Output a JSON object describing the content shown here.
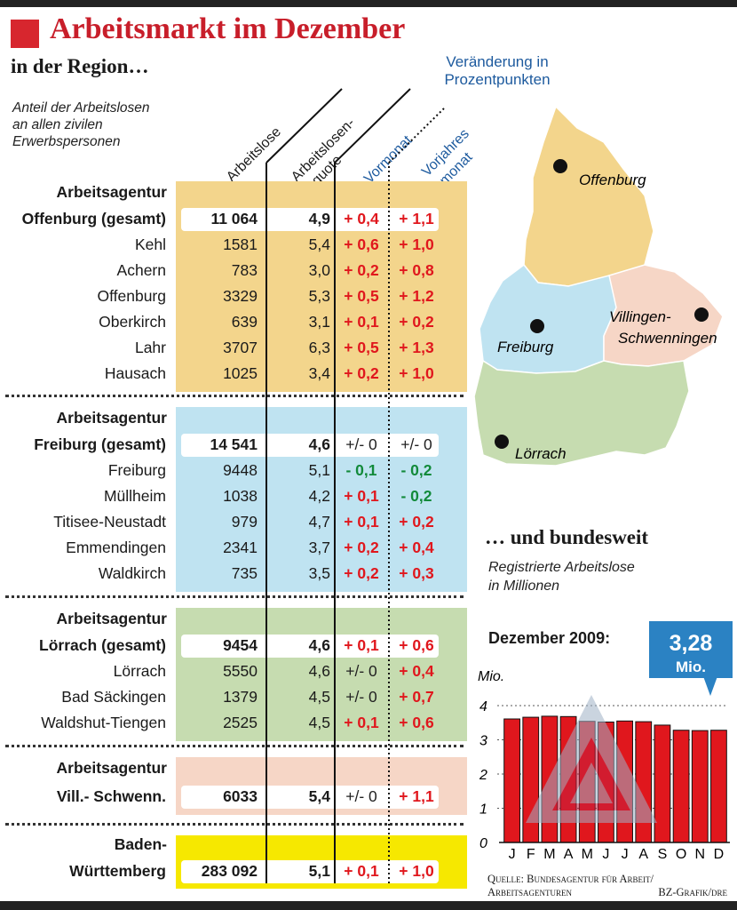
{
  "title": "Arbeitsmarkt im Dezember",
  "subtitle": "in der Region…",
  "note": [
    "Anteil der Arbeitslosen",
    "an allen zivilen",
    "Erwerbspersonen"
  ],
  "change_header": [
    "Veränderung in",
    "Prozentpunkten"
  ],
  "column_headers": {
    "arbeitslose": "Arbeitslose",
    "quote_1": "Arbeitslosen-",
    "quote_2": "quote",
    "vormonat": "Vormonat",
    "vorjahr_1": "Vorjahres",
    "vorjahr_2": "monat"
  },
  "agencies": [
    {
      "head": [
        "Arbeitsagentur",
        "Offenburg (gesamt)"
      ],
      "color": "#f3d58c",
      "total": {
        "num": "11 064",
        "quote": "4,9",
        "vm": "+ 0,4",
        "vj": "+ 1,1"
      },
      "rows": [
        {
          "name": "Kehl",
          "num": "1581",
          "quote": "5,4",
          "vm": "+ 0,6",
          "vj": "+ 1,0"
        },
        {
          "name": "Achern",
          "num": "783",
          "quote": "3,0",
          "vm": "+ 0,2",
          "vj": "+ 0,8"
        },
        {
          "name": "Offenburg",
          "num": "3329",
          "quote": "5,3",
          "vm": "+ 0,5",
          "vj": "+ 1,2"
        },
        {
          "name": "Oberkirch",
          "num": "639",
          "quote": "3,1",
          "vm": "+ 0,1",
          "vj": "+ 0,2"
        },
        {
          "name": "Lahr",
          "num": "3707",
          "quote": "6,3",
          "vm": "+ 0,5",
          "vj": "+ 1,3"
        },
        {
          "name": "Hausach",
          "num": "1025",
          "quote": "3,4",
          "vm": "+ 0,2",
          "vj": "+ 1,0"
        }
      ]
    },
    {
      "head": [
        "Arbeitsagentur",
        "Freiburg (gesamt)"
      ],
      "color": "#bfe3f1",
      "total": {
        "num": "14 541",
        "quote": "4,6",
        "vm": "+/- 0",
        "vj": "+/- 0"
      },
      "rows": [
        {
          "name": "Freiburg",
          "num": "9448",
          "quote": "5,1",
          "vm": "- 0,1",
          "vj": "- 0,2"
        },
        {
          "name": "Müllheim",
          "num": "1038",
          "quote": "4,2",
          "vm": "+ 0,1",
          "vj": "- 0,2"
        },
        {
          "name": "Titisee-Neustadt",
          "num": "979",
          "quote": "4,7",
          "vm": "+ 0,1",
          "vj": "+ 0,2"
        },
        {
          "name": "Emmendingen",
          "num": "2341",
          "quote": "3,7",
          "vm": "+ 0,2",
          "vj": "+ 0,4"
        },
        {
          "name": "Waldkirch",
          "num": "735",
          "quote": "3,5",
          "vm": "+ 0,2",
          "vj": "+ 0,3"
        }
      ]
    },
    {
      "head": [
        "Arbeitsagentur",
        "Lörrach (gesamt)"
      ],
      "color": "#c6dcb0",
      "total": {
        "num": "9454",
        "quote": "4,6",
        "vm": "+ 0,1",
        "vj": "+ 0,6"
      },
      "rows": [
        {
          "name": "Lörrach",
          "num": "5550",
          "quote": "4,6",
          "vm": "+/- 0",
          "vj": "+ 0,4"
        },
        {
          "name": "Bad Säckingen",
          "num": "1379",
          "quote": "4,5",
          "vm": "+/- 0",
          "vj": "+ 0,7"
        },
        {
          "name": "Waldshut-Tiengen",
          "num": "2525",
          "quote": "4,5",
          "vm": "+ 0,1",
          "vj": "+ 0,6"
        }
      ]
    },
    {
      "head": [
        "Arbeitsagentur",
        "Vill.- Schwenn."
      ],
      "color": "#f6d6c6",
      "total": {
        "num": "6033",
        "quote": "5,4",
        "vm": "+/- 0",
        "vj": "+ 1,1"
      },
      "rows": []
    },
    {
      "head": [
        "Baden-",
        "Württemberg"
      ],
      "color": "#f6e800",
      "total": {
        "num": "283 092",
        "quote": "5,1",
        "vm": "+ 0,1",
        "vj": "+ 1,0"
      },
      "rows": []
    }
  ],
  "map": {
    "labels": {
      "offenburg": "Offenburg",
      "freiburg": "Freiburg",
      "villingen_1": "Villingen-",
      "villingen_2": "Schwenningen",
      "loerrach": "Lörrach"
    },
    "colors": {
      "offenburg": "#f3d58c",
      "freiburg": "#bfe3f1",
      "villingen": "#f6d6c6",
      "loerrach": "#c6dcb0"
    }
  },
  "national": {
    "heading": "… und bundesweit",
    "sub": [
      "Registrierte Arbeitslose",
      "in Millionen"
    ],
    "callout_label": "Dezember 2009:",
    "callout_value": "3,28",
    "callout_unit": "Mio."
  },
  "source": [
    "Quelle: Bundesagentur für Arbeit/",
    "Arbeitsagenturen"
  ],
  "credit": "BZ-Grafik/dre",
  "chart_data": {
    "type": "bar",
    "ylabel": "Mio.",
    "ylim": [
      0,
      4
    ],
    "yticks": [
      "0",
      "1",
      "2",
      "3",
      "4"
    ],
    "categories": [
      "J",
      "F",
      "M",
      "A",
      "M",
      "J",
      "J",
      "A",
      "S",
      "O",
      "N",
      "D"
    ],
    "values": [
      3.61,
      3.66,
      3.69,
      3.68,
      3.54,
      3.52,
      3.55,
      3.53,
      3.43,
      3.28,
      3.27,
      3.28
    ],
    "bar_color": "#e0171d",
    "grid": "horizontal dotted",
    "callout_color": "#2b82c3"
  }
}
